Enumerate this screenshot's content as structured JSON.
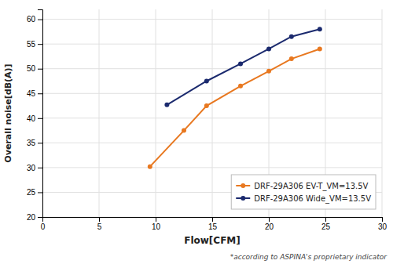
{
  "chart_data": {
    "type": "line",
    "xlabel": "Flow[CFM]",
    "ylabel": "Overall noise[dB(A)]",
    "footnote": "*according to ASPINA's proprietary indicator",
    "series": [
      {
        "name": "DRF-29A306 EV-T_VM=13.5V",
        "color": "#E87820",
        "marker": "circle",
        "x": [
          9.5,
          12.5,
          14.5,
          17.5,
          20.0,
          22.0,
          24.5
        ],
        "values": [
          30.2,
          37.5,
          42.5,
          46.5,
          49.5,
          52.0,
          54.0
        ]
      },
      {
        "name": "DRF-29A306 Wide_VM=13.5V",
        "color": "#1B2A6E",
        "marker": "circle",
        "x": [
          11.0,
          14.5,
          17.5,
          20.0,
          22.0,
          24.5
        ],
        "values": [
          42.7,
          47.5,
          51.0,
          54.0,
          56.5,
          58.0
        ]
      }
    ],
    "xlim": [
      0,
      30
    ],
    "ylim": [
      20,
      62
    ],
    "xticks": [
      0,
      5,
      10,
      15,
      20,
      25,
      30
    ],
    "yticks": [
      20,
      25,
      30,
      35,
      40,
      45,
      50,
      55,
      60
    ],
    "grid": true,
    "legend": "lower right"
  }
}
